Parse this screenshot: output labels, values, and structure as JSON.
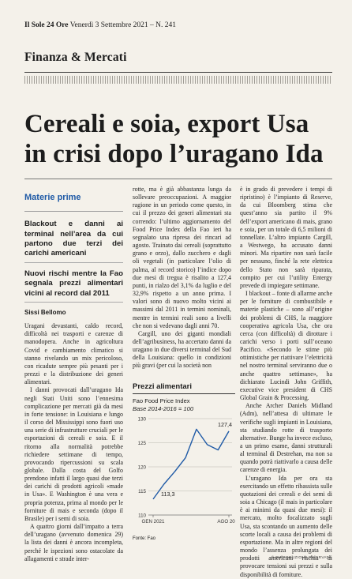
{
  "masthead": {
    "brand": "Il Sole 24 Ore",
    "date": "Venerdì 3 Settembre 2021",
    "issue": "– N. 241"
  },
  "section": "Finanza & Mercati",
  "headline": "Cereali e soia, export Usa in crisi dopo l’uragano Ida",
  "kicker": "Materie prime",
  "summary1": "Blackout e danni ai terminal nell’area da cui partono due terzi dei carichi americani",
  "summary2": "Nuovi rischi mentre la Fao segnala prezzi alimentari vicini al record dal 2011",
  "author": "Sissi Bellomo",
  "col1": [
    "Uragani devastanti, caldo record, difficoltà nei trasporti e carenze di manodopera. Anche in agricoltura Covid e cambiamento climatico si stanno rivelando un mix pericoloso, con ricadute sempre più pesanti per i prezzi e la distribuzione dei generi alimentari.",
    "I danni provocati dall’uragano Ida negli Stati Uniti sono l’ennesima complicazione per mercati già da mesi in forte tensione: in Louisiana e lungo il corso del Mississippi sono fuori uso una serie di infrastrutture cruciali per le esportazioni di cereali e soia. E il ritorno alla normalità potrebbe richiedere settimane di tempo, provocando ripercussioni su scala globale. Dalla costa del Golfo prendono infatti il largo quasi due terzi dei carichi di prodotti agricoli «made in Usa». E Washington è una vera e propria potenza, prima al mondo per le forniture di mais e seconda (dopo il Brasile) per i semi di soia.",
    "A quattro giorni dall’impatto a terra dell’uragano (avvenuto domenica 29) la lista dei danni è ancora incompleta, perché le ispezioni sono ostacolate da allagamenti e strade inter-"
  ],
  "col2": [
    "rotte, ma è già abbastanza lunga da sollevare preoccupazioni. A maggior ragione in un periodo come questo, in cui il prezzo dei generi alimentari sta correndo: l’ultimo aggiornamento del Food Price Index della Fao ieri ha segnalato una ripresa dei rincari ad agosto. Trainato dai cereali (soprattutto grano e orzo), dallo zucchero e dagli oli vegetali (in particolare l’olio di palma, al record storico) l’indice dopo due mesi di tregua è risalito a 127,4 punti, in rialzo del 3,1% da luglio e del 32,9% rispetto a un anno prima. I valori sono di nuovo molto vicini ai massimi dal 2011 in termini nominali, mentre in termini reali sono a livelli che non si vedevano dagli anni 70.",
    "Cargill, uno dei giganti mondiali dell’agribusiness, ha accertato danni da uragano in due diversi terminal del Sud della Louisiana: quello in condizioni più gravi (per cui la società non"
  ],
  "chart": {
    "title": "Prezzi alimentari",
    "subtitle": "Fao Food Price Index",
    "base": "Base 2014-2016 = 100",
    "source": "Fonte: Fao",
    "callout_low": "113,3",
    "callout_high": "127,4"
  },
  "chart_data": {
    "type": "line",
    "title": "Prezzi alimentari",
    "subtitle": "Fao Food Price Index · Base 2014-2016 = 100",
    "x_ticks": [
      "GEN 2021",
      "AGO 2021"
    ],
    "x": [
      "2021-01",
      "2021-02",
      "2021-03",
      "2021-04",
      "2021-05",
      "2021-06",
      "2021-07",
      "2021-08"
    ],
    "values": [
      113.3,
      116.4,
      119.0,
      121.9,
      127.8,
      124.6,
      123.5,
      127.4
    ],
    "ylim": [
      110,
      130
    ],
    "y_ticks": [
      110,
      115,
      120,
      125,
      130
    ],
    "grid": true,
    "color": "#1f5aa6",
    "annotations": [
      "113,3",
      "127,4"
    ]
  },
  "col3": [
    "è in grado di prevedere i tempi di ripristino) è l’impianto di Reserve, da cui Bloomberg stima che quest’anno sia partito il 9% dell’export americano di mais, grano e soia, per un totale di 6,5 milioni di tonnellate. L’altro impianto Cargill, a Westwego, ha accusato danni minori. Ma ripartire non sarà facile per nessuno, finché la rete elettrica dello Stato non sarà riparata, compito per cui l’utility Entergy prevede di impiegare settimane.",
    "I blackout – fonte di allarme anche per le forniture di combustibile e materie plastiche – sono all’origine dei problemi di CHS, la maggiore cooperativa agricola Usa, che ora cerca (con difficoltà) di dirottare i carichi verso i porti sull’oceano Pacifico. «Secondo le stime più ottimistiche per riattivare l’elettricità nel nostro terminal serviranno due o anche quattro settimane», ha dichiarato Lucindi John Griffith, executive vice president di CHS Global Grain & Processing.",
    "Anche Archer Daniels Midland (Adm), nell’attesa di ultimare le verifiche sugli impianti in Louisiana, sta studiando rotte di trasporto alternative. Bunge ha invece escluso, a un primo esame, danni strutturali al terminal di Destrehan, ma non sa quando potrà riattivarlo a causa delle carenze di energia.",
    "L’uragano Ida per ora sta esercitando un effetto ribassista sulle quotazioni dei cereali e dei semi di soia a Chicago (il mais in particolare è ai minimi da quasi due mesi): il mercato, molto focalizzato sugli Usa, sta scontando un aumento delle scorte locali a causa dei problemi di esportazione. Ma in altre regioni del mondo l’assenza prolungata dei prodotti americani rischia di provocare tensioni sui prezzi e sulla disponibilità di forniture."
  ],
  "repro": "© RIPRODUZIONE RISERVATA"
}
